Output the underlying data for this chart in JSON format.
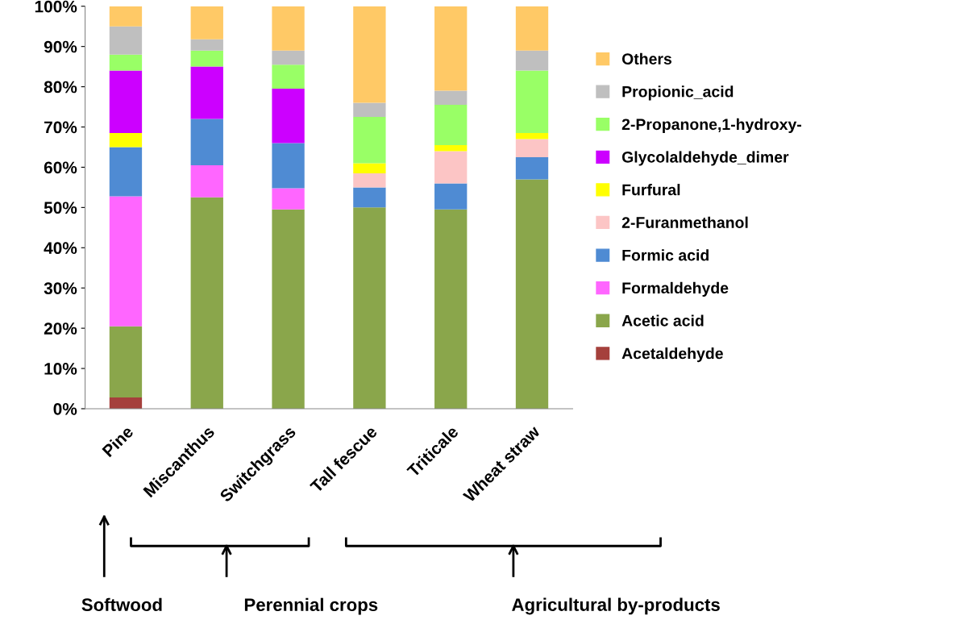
{
  "chart_data": {
    "type": "bar",
    "stacked": true,
    "categories": [
      "Pine",
      "Miscanthus",
      "Switchgrass",
      "Tall fescue",
      "Triticale",
      "Wheat straw"
    ],
    "series": [
      {
        "name": "Acetaldehyde",
        "color": "#a5403c",
        "values": [
          2.8,
          0,
          0,
          0,
          0,
          0
        ]
      },
      {
        "name": "Acetic acid",
        "color": "#8aa64b",
        "values": [
          17.7,
          52.5,
          49.5,
          50,
          49.5,
          57
        ]
      },
      {
        "name": "Formaldehyde",
        "color": "#ff66ff",
        "values": [
          32.3,
          8,
          5.3,
          0,
          0,
          0
        ]
      },
      {
        "name": "Formic acid",
        "color": "#4f8bd3",
        "values": [
          12.2,
          11.5,
          11.2,
          5,
          6.5,
          5.5
        ]
      },
      {
        "name": "2-Furanmethanol",
        "color": "#fcc5c5",
        "values": [
          0,
          0,
          0,
          3.5,
          8,
          4.5
        ]
      },
      {
        "name": "Furfural",
        "color": "#ffff00",
        "values": [
          3.5,
          0,
          0,
          2.5,
          1.5,
          1.5
        ]
      },
      {
        "name": "Glycolaldehyde_dimer",
        "color": "#cc00ff",
        "values": [
          15.5,
          13,
          13.5,
          0,
          0,
          0
        ]
      },
      {
        "name": "2-Propanone,1-hydroxy-",
        "color": "#99ff66",
        "values": [
          4,
          4,
          6,
          11.5,
          10,
          15.5
        ]
      },
      {
        "name": "Propionic_acid",
        "color": "#bfbfbf",
        "values": [
          7,
          2.8,
          3.5,
          3.5,
          3.5,
          5
        ]
      },
      {
        "name": "Others",
        "color": "#ffc966",
        "values": [
          5,
          8.2,
          11,
          24,
          21,
          11
        ]
      }
    ],
    "ylim": [
      0,
      100
    ],
    "yticks": [
      {
        "value": 0,
        "label": "0%"
      },
      {
        "value": 10,
        "label": "10%"
      },
      {
        "value": 20,
        "label": "20%"
      },
      {
        "value": 30,
        "label": "30%"
      },
      {
        "value": 40,
        "label": "40%"
      },
      {
        "value": 50,
        "label": "50%"
      },
      {
        "value": 60,
        "label": "60%"
      },
      {
        "value": 70,
        "label": "70%"
      },
      {
        "value": 80,
        "label": "80%"
      },
      {
        "value": 90,
        "label": "90%"
      },
      {
        "value": 100,
        "label": "100%"
      }
    ],
    "grid": false,
    "legend": "right",
    "annotations": [
      "Softwood",
      "Perennial crops",
      "Agricultural by-products"
    ]
  }
}
